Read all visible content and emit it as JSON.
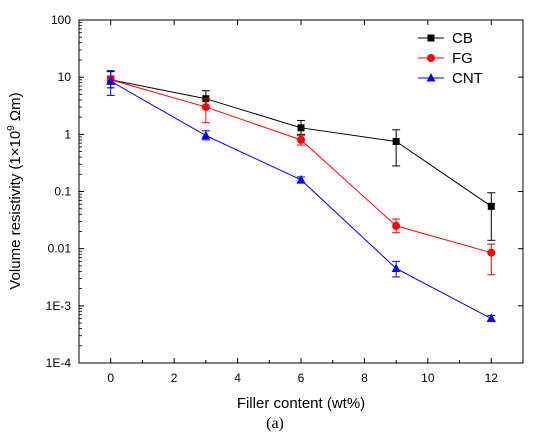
{
  "chart_data": {
    "type": "line",
    "xlabel": "Filler content (wt%)",
    "ylabel": {
      "prefix": "Volume resistivity (1×10",
      "sup": "9",
      "suffix": " Ωm)"
    },
    "xlim": [
      -1,
      13
    ],
    "ylim": [
      0.0001,
      100
    ],
    "yscale": "log",
    "x_ticks": [
      0,
      2,
      4,
      6,
      8,
      10,
      12
    ],
    "x_tick_labels": [
      "0",
      "2",
      "4",
      "6",
      "8",
      "10",
      "12"
    ],
    "y_ticks": [
      0.0001,
      0.001,
      0.01,
      0.1,
      1,
      10,
      100
    ],
    "y_tick_labels": [
      "1E-4",
      "1E-3",
      "0.01",
      "0.1",
      "1",
      "10",
      "100"
    ],
    "legend_position": "top-right",
    "series": [
      {
        "name": "CB",
        "color": "#000000",
        "marker": "square",
        "x": [
          0,
          3,
          6,
          9,
          12
        ],
        "y": [
          9,
          4.2,
          1.3,
          0.75,
          0.055
        ],
        "err_low": [
          6.5,
          3.0,
          1.0,
          0.28,
          0.014
        ],
        "err_high": [
          12.5,
          5.8,
          1.75,
          1.2,
          0.095
        ]
      },
      {
        "name": "FG",
        "color": "#ff0000",
        "marker": "circle",
        "x": [
          0,
          3,
          6,
          9,
          12
        ],
        "y": [
          9,
          3.0,
          0.8,
          0.025,
          0.0085
        ],
        "err_low": [
          7.5,
          1.6,
          0.65,
          0.019,
          0.0035
        ],
        "err_high": [
          10.5,
          4.2,
          0.95,
          0.033,
          0.012
        ]
      },
      {
        "name": "CNT",
        "color": "#0000ff",
        "marker": "triangle",
        "x": [
          0,
          3,
          6,
          9,
          12
        ],
        "y": [
          8.5,
          0.95,
          0.16,
          0.0045,
          0.0006
        ],
        "err_low": [
          4.8,
          0.8,
          0.14,
          0.0032,
          0.00055
        ],
        "err_high": [
          13,
          1.15,
          0.18,
          0.006,
          0.00068
        ]
      }
    ]
  },
  "caption": "(a)"
}
